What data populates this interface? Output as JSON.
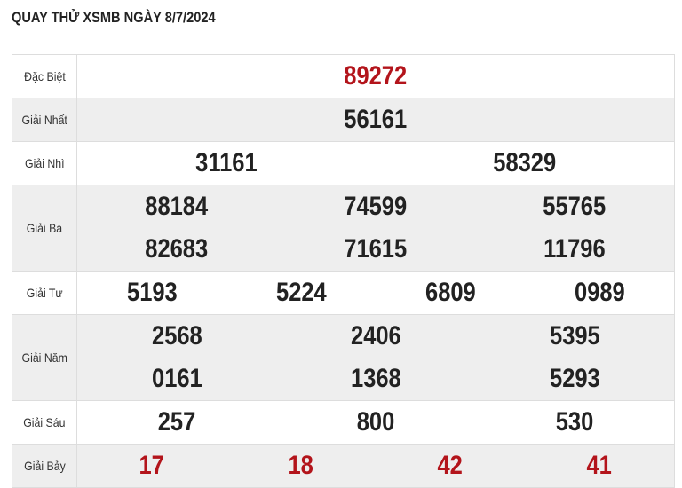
{
  "title": "QUAY THỬ XSMB NGÀY 8/7/2024",
  "colors": {
    "highlight": "#b3141b",
    "text": "#222222",
    "alt_row": "#eeeeee"
  },
  "prizes": [
    {
      "label": "Đặc Biệt",
      "lines": [
        [
          "89272"
        ]
      ],
      "red": true
    },
    {
      "label": "Giải Nhất",
      "lines": [
        [
          "56161"
        ]
      ]
    },
    {
      "label": "Giải Nhì",
      "lines": [
        [
          "31161",
          "58329"
        ]
      ]
    },
    {
      "label": "Giải Ba",
      "lines": [
        [
          "88184",
          "74599",
          "55765"
        ],
        [
          "82683",
          "71615",
          "11796"
        ]
      ]
    },
    {
      "label": "Giải Tư",
      "lines": [
        [
          "5193",
          "5224",
          "6809",
          "0989"
        ]
      ]
    },
    {
      "label": "Giải Năm",
      "lines": [
        [
          "2568",
          "2406",
          "5395"
        ],
        [
          "0161",
          "1368",
          "5293"
        ]
      ]
    },
    {
      "label": "Giải Sáu",
      "lines": [
        [
          "257",
          "800",
          "530"
        ]
      ]
    },
    {
      "label": "Giải Bảy",
      "lines": [
        [
          "17",
          "18",
          "42",
          "41"
        ]
      ],
      "red": true
    }
  ]
}
